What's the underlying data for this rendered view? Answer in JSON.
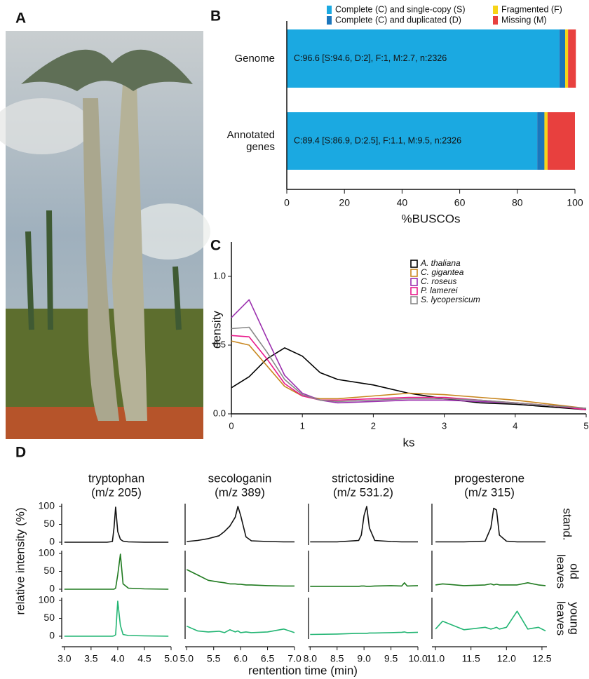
{
  "chart_data": [
    {
      "type": "image",
      "label": "A"
    },
    {
      "type": "stacked_barh",
      "label": "B",
      "categories": [
        "Genome",
        "Annotated genes"
      ],
      "series": [
        {
          "name": "Complete (C) and single-copy (S)",
          "color": "#1ba9e1",
          "values": [
            94.6,
            86.9
          ]
        },
        {
          "name": "Complete (C) and duplicated (D)",
          "color": "#1b76bc",
          "values": [
            2,
            2.5
          ]
        },
        {
          "name": "Fragmented (F)",
          "color": "#f7d417",
          "values": [
            1,
            1.1
          ]
        },
        {
          "name": "Missing (M)",
          "color": "#e8403e",
          "values": [
            2.7,
            9.5
          ]
        }
      ],
      "annotations": [
        "C:96.6 [S:94.6, D:2], F:1, M:2.7, n:2326",
        "C:89.4 [S:86.9, D:2.5], F:1.1, M:9.5, n:2326"
      ],
      "xlim": [
        0,
        100
      ],
      "xticks": [
        0,
        20,
        40,
        60,
        80,
        100
      ],
      "xlabel": "%BUSCOs"
    },
    {
      "type": "line",
      "label": "C",
      "x": [
        0,
        0.25,
        0.5,
        0.75,
        1,
        1.25,
        1.5,
        2,
        2.5,
        3,
        3.5,
        4,
        4.5,
        5
      ],
      "series": [
        {
          "name": "A. thaliana",
          "color": "#000000",
          "values": [
            0.19,
            0.27,
            0.4,
            0.48,
            0.42,
            0.3,
            0.25,
            0.21,
            0.15,
            0.11,
            0.08,
            0.07,
            0.05,
            0.03
          ]
        },
        {
          "name": "C. gigantea",
          "color": "#c8861e",
          "values": [
            0.53,
            0.5,
            0.35,
            0.2,
            0.13,
            0.11,
            0.11,
            0.13,
            0.15,
            0.14,
            0.12,
            0.1,
            0.07,
            0.04
          ]
        },
        {
          "name": "C. roseus",
          "color": "#9b2fae",
          "values": [
            0.7,
            0.83,
            0.55,
            0.28,
            0.15,
            0.1,
            0.08,
            0.09,
            0.1,
            0.1,
            0.09,
            0.08,
            0.06,
            0.04
          ]
        },
        {
          "name": "P. lamerei",
          "color": "#e8198b",
          "values": [
            0.57,
            0.56,
            0.4,
            0.22,
            0.13,
            0.1,
            0.1,
            0.11,
            0.12,
            0.12,
            0.1,
            0.08,
            0.06,
            0.03
          ]
        },
        {
          "name": "S. lycopersicum",
          "color": "#888888",
          "values": [
            0.62,
            0.63,
            0.45,
            0.25,
            0.14,
            0.1,
            0.09,
            0.1,
            0.11,
            0.11,
            0.1,
            0.08,
            0.06,
            0.04
          ]
        }
      ],
      "xlim": [
        0,
        5
      ],
      "ylim": [
        0,
        1.25
      ],
      "xticks": [
        0,
        1,
        2,
        3,
        4,
        5
      ],
      "yticks": [
        {
          "value": 0,
          "label": "0.0"
        },
        0.5,
        {
          "value": 1,
          "label": "1.0"
        }
      ],
      "xlabel": "ks",
      "ylabel": "density"
    },
    {
      "type": "chromatogram_grid",
      "label": "D",
      "ylabel": "relative intensity (%)",
      "xlabel": "rentention time (min)",
      "ylim": [
        0,
        100
      ],
      "yticks": [
        0,
        50,
        100
      ],
      "rows": [
        {
          "label": [
            "stand."
          ],
          "color": "#111111"
        },
        {
          "label": [
            "old",
            "leaves"
          ],
          "color": "#1f7a1f"
        },
        {
          "label": [
            "young",
            "leaves"
          ],
          "color": "#22b573"
        }
      ],
      "columns": [
        {
          "title": "tryptophan",
          "subtitle": "(m/z 205)",
          "xlim": [
            2.95,
            5.0
          ],
          "xticks": [
            {
              "value": 3,
              "label": "3.0"
            },
            3.5,
            {
              "value": 4,
              "label": "4.0"
            },
            4.5,
            {
              "value": 5,
              "label": "5.0"
            }
          ],
          "x": [
            3.0,
            3.4,
            3.8,
            3.9,
            3.93,
            3.96,
            4.0,
            4.05,
            4.1,
            4.2,
            4.5,
            4.95
          ],
          "traces": [
            [
              0,
              0,
              0,
              2,
              40,
              98,
              30,
              8,
              3,
              1,
              0,
              0
            ],
            [
              0,
              0,
              0,
              0,
              0,
              3,
              40,
              98,
              15,
              3,
              1,
              0
            ],
            [
              0,
              0,
              0,
              0,
              1,
              4,
              98,
              30,
              5,
              2,
              1,
              0
            ]
          ]
        },
        {
          "title": "secologanin",
          "subtitle": "(m/z 389)",
          "xlim": [
            4.97,
            7.0
          ],
          "xticks": [
            {
              "value": 5,
              "label": "5.0"
            },
            5.5,
            {
              "value": 6,
              "label": "6.0"
            },
            6.5,
            {
              "value": 7,
              "label": "7.0"
            }
          ],
          "x": [
            5.0,
            5.2,
            5.4,
            5.6,
            5.7,
            5.8,
            5.9,
            5.95,
            6.0,
            6.1,
            6.2,
            6.5,
            6.8,
            7.0
          ],
          "traces": [
            [
              2,
              5,
              10,
              18,
              30,
              45,
              70,
              100,
              75,
              15,
              4,
              2,
              1,
              1
            ],
            [
              55,
              40,
              25,
              20,
              18,
              15,
              15,
              14,
              14,
              12,
              12,
              10,
              9,
              9
            ],
            [
              28,
              15,
              12,
              14,
              10,
              18,
              12,
              15,
              10,
              12,
              10,
              12,
              20,
              10
            ]
          ]
        },
        {
          "title": "strictosidine",
          "subtitle": "(m/z 531.2)",
          "xlim": [
            7.97,
            10.0
          ],
          "xticks": [
            {
              "value": 8,
              "label": "8.0"
            },
            8.5,
            {
              "value": 9,
              "label": "9.0"
            },
            9.5,
            {
              "value": 10,
              "label": "10.0"
            }
          ],
          "x": [
            8.0,
            8.5,
            8.9,
            8.95,
            9.0,
            9.05,
            9.1,
            9.2,
            9.5,
            9.7,
            9.75,
            9.8,
            10.0
          ],
          "traces": [
            [
              1,
              1,
              5,
              20,
              75,
              100,
              40,
              5,
              2,
              1,
              1,
              1,
              1
            ],
            [
              8,
              8,
              8,
              9,
              9,
              8,
              8,
              9,
              10,
              9,
              18,
              9,
              10
            ],
            [
              5,
              6,
              8,
              8,
              8,
              8,
              9,
              9,
              10,
              11,
              12,
              10,
              11
            ]
          ]
        },
        {
          "title": "progesterone",
          "subtitle": "(m/z 315)",
          "xlim": [
            10.95,
            12.57
          ],
          "xticks": [
            {
              "value": 11,
              "label": "11.0"
            },
            11.5,
            {
              "value": 12,
              "label": "12.0"
            },
            12.5
          ],
          "x": [
            11.0,
            11.1,
            11.4,
            11.7,
            11.78,
            11.82,
            11.86,
            11.9,
            12.0,
            12.15,
            12.3,
            12.45,
            12.55
          ],
          "traces": [
            [
              1,
              1,
              1,
              3,
              40,
              95,
              90,
              20,
              3,
              1,
              1,
              1,
              1
            ],
            [
              12,
              15,
              10,
              12,
              15,
              12,
              14,
              12,
              12,
              12,
              18,
              12,
              10
            ],
            [
              20,
              42,
              18,
              25,
              20,
              22,
              25,
              20,
              25,
              70,
              20,
              25,
              15
            ]
          ]
        }
      ]
    }
  ]
}
